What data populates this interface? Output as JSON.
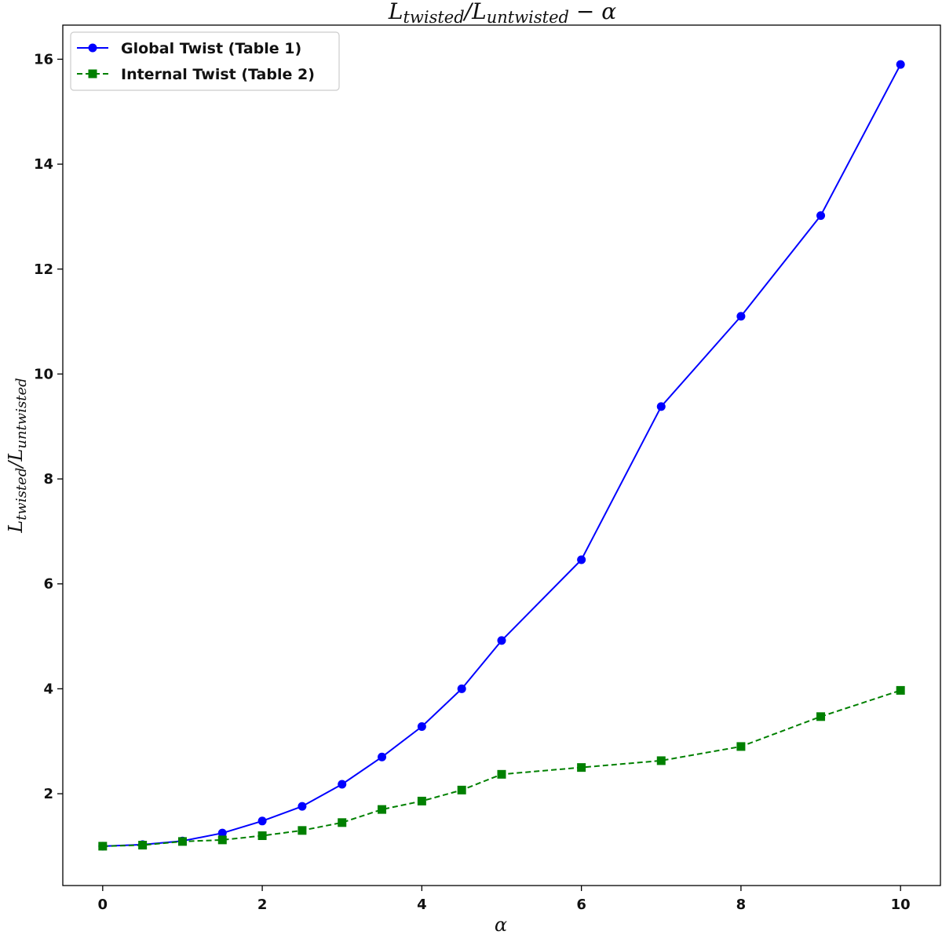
{
  "chart_data": {
    "type": "line",
    "title": {
      "main1": "L",
      "sub1": "twisted",
      "mid": "/L",
      "sub2": "untwisted",
      "tail": " − α"
    },
    "xlabel": "α",
    "ylabel": {
      "main1": "L",
      "sub1": "twisted",
      "mid": "/L",
      "sub2": "untwisted"
    },
    "xlim": [
      -0.5,
      10.5
    ],
    "ylim": [
      0.25,
      16.65
    ],
    "xticks": [
      "0",
      "2",
      "4",
      "6",
      "8",
      "10"
    ],
    "yticks": [
      "2",
      "4",
      "6",
      "8",
      "10",
      "12",
      "14",
      "16"
    ],
    "grid": false,
    "legend_position": "upper-left",
    "series": [
      {
        "name": "Global Twist (Table 1)",
        "color": "#0000ff",
        "marker": "circle",
        "linestyle": "solid",
        "x": [
          0,
          0.5,
          1,
          1.5,
          2,
          2.5,
          3,
          3.5,
          4,
          4.5,
          5,
          6,
          7,
          8,
          9,
          10
        ],
        "y": [
          1.0,
          1.03,
          1.1,
          1.25,
          1.48,
          1.76,
          2.18,
          2.7,
          3.28,
          4.0,
          4.92,
          6.46,
          9.38,
          11.1,
          13.02,
          15.9
        ]
      },
      {
        "name": "Internal Twist (Table 2)",
        "color": "#008000",
        "marker": "square",
        "linestyle": "dashed",
        "x": [
          0,
          0.5,
          1,
          1.5,
          2,
          2.5,
          3,
          3.5,
          4,
          4.5,
          5,
          6,
          7,
          8,
          9,
          10
        ],
        "y": [
          1.0,
          1.02,
          1.09,
          1.12,
          1.2,
          1.3,
          1.45,
          1.7,
          1.86,
          2.07,
          2.37,
          2.5,
          2.63,
          2.9,
          3.47,
          3.97
        ]
      }
    ]
  }
}
